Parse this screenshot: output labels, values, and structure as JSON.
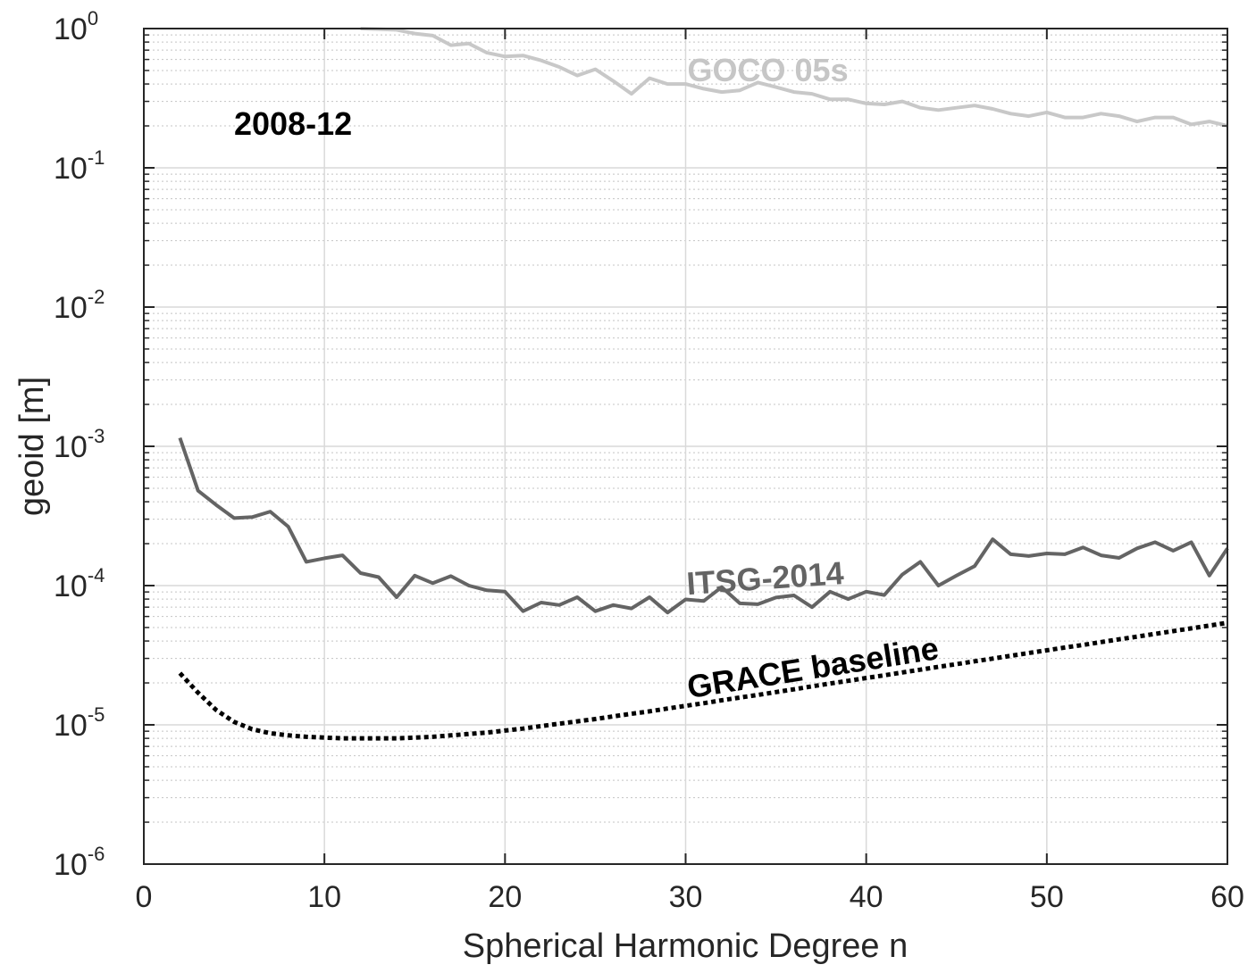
{
  "chart_data": {
    "type": "line",
    "annotation": "2008-12",
    "xlabel": "Spherical Harmonic Degree n",
    "ylabel": "geoid [m]",
    "xlim": [
      0,
      60
    ],
    "ylim": [
      1e-06,
      1
    ],
    "yscale": "log",
    "grid": true,
    "x_ticks": [
      {
        "value": 0,
        "label": "0"
      },
      {
        "value": 10,
        "label": "10"
      },
      {
        "value": 20,
        "label": "20"
      },
      {
        "value": 30,
        "label": "30"
      },
      {
        "value": 40,
        "label": "40"
      },
      {
        "value": 50,
        "label": "50"
      },
      {
        "value": 60,
        "label": "60"
      }
    ],
    "y_ticks": [
      {
        "value": 1e-06,
        "base": "10",
        "exp": "-6"
      },
      {
        "value": 1e-05,
        "base": "10",
        "exp": "-5"
      },
      {
        "value": 0.0001,
        "base": "10",
        "exp": "-4"
      },
      {
        "value": 0.001,
        "base": "10",
        "exp": "-3"
      },
      {
        "value": 0.01,
        "base": "10",
        "exp": "-2"
      },
      {
        "value": 0.1,
        "base": "10",
        "exp": "-1"
      },
      {
        "value": 1,
        "base": "10",
        "exp": "0"
      }
    ],
    "series": [
      {
        "name": "GOCO 05s",
        "color": "#c8c8c8",
        "dash": "solid",
        "label_at": {
          "x": 30.1,
          "y": 0.42
        },
        "label_rotate": 0,
        "x": [
          12,
          14,
          15,
          16,
          17,
          18,
          19,
          20,
          21,
          22,
          23,
          24,
          25,
          26,
          27,
          28,
          29,
          30,
          31,
          32,
          33,
          34,
          35,
          36,
          37,
          38,
          39,
          40,
          41,
          42,
          43,
          44,
          45,
          46,
          47,
          48,
          49,
          50,
          51,
          52,
          53,
          54,
          55,
          56,
          57,
          58,
          59,
          60
        ],
        "y": [
          1.0,
          0.98,
          0.92,
          0.89,
          0.76,
          0.78,
          0.67,
          0.63,
          0.64,
          0.59,
          0.53,
          0.46,
          0.51,
          0.42,
          0.34,
          0.44,
          0.4,
          0.4,
          0.37,
          0.35,
          0.36,
          0.41,
          0.38,
          0.35,
          0.34,
          0.31,
          0.31,
          0.29,
          0.285,
          0.3,
          0.27,
          0.26,
          0.27,
          0.28,
          0.265,
          0.245,
          0.235,
          0.25,
          0.23,
          0.23,
          0.245,
          0.235,
          0.215,
          0.23,
          0.23,
          0.205,
          0.215,
          0.2
        ]
      },
      {
        "name": "ITSG-2014",
        "color": "#646464",
        "dash": "solid",
        "label_at": {
          "x": 30.1,
          "y": 8.6e-05
        },
        "label_rotate": -4,
        "x": [
          2,
          3,
          4,
          5,
          6,
          7,
          8,
          9,
          10,
          11,
          12,
          13,
          14,
          15,
          16,
          17,
          18,
          19,
          20,
          21,
          22,
          23,
          24,
          25,
          26,
          27,
          28,
          29,
          30,
          31,
          32,
          33,
          34,
          35,
          36,
          37,
          38,
          39,
          40,
          41,
          42,
          43,
          44,
          45,
          46,
          47,
          48,
          49,
          50,
          51,
          52,
          53,
          54,
          55,
          56,
          57,
          58,
          59,
          60
        ],
        "y": [
          0.00115,
          0.00048,
          0.00038,
          0.000305,
          0.00031,
          0.00034,
          0.000265,
          0.000148,
          0.000157,
          0.000165,
          0.000123,
          0.000115,
          8.25e-05,
          0.000118,
          0.000104,
          0.000117,
          0.0001,
          9.25e-05,
          9.05e-05,
          6.55e-05,
          7.55e-05,
          7.25e-05,
          8.25e-05,
          6.55e-05,
          7.25e-05,
          6.85e-05,
          8.25e-05,
          6.4e-05,
          7.95e-05,
          7.75e-05,
          9.75e-05,
          7.45e-05,
          7.35e-05,
          8.2e-05,
          8.5e-05,
          7e-05,
          9.05e-05,
          8e-05,
          9.05e-05,
          8.55e-05,
          0.00012,
          0.000148,
          0.0001,
          0.000118,
          0.000138,
          0.000215,
          0.000168,
          0.000163,
          0.00017,
          0.000168,
          0.000188,
          0.000165,
          0.000158,
          0.000185,
          0.000205,
          0.000178,
          0.000205,
          0.000118,
          0.000185
        ]
      },
      {
        "name": "GRACE baseline",
        "color": "#000000",
        "dash": "dotted",
        "label_at": {
          "x": 30.2,
          "y": 1.55e-05
        },
        "label_rotate": -9,
        "x": [
          2,
          3,
          4,
          5,
          6,
          7,
          8,
          9,
          10,
          11,
          12,
          13,
          14,
          15,
          16,
          17,
          18,
          19,
          20,
          21,
          22,
          23,
          24,
          25,
          26,
          27,
          28,
          29,
          30,
          31,
          32,
          33,
          34,
          35,
          36,
          37,
          38,
          39,
          40,
          41,
          42,
          43,
          44,
          45,
          46,
          47,
          48,
          49,
          50,
          51,
          52,
          53,
          54,
          55,
          56,
          57,
          58,
          59,
          60
        ],
        "y": [
          2.35e-05,
          1.7e-05,
          1.28e-05,
          1.05e-05,
          9.3e-06,
          8.7e-06,
          8.4e-06,
          8.2e-06,
          8.1e-06,
          8e-06,
          8e-06,
          8e-06,
          8e-06,
          8.1e-06,
          8.2e-06,
          8.4e-06,
          8.6e-06,
          8.8e-06,
          9.1e-06,
          9.4e-06,
          9.8e-06,
          1.02e-05,
          1.06e-05,
          1.1e-05,
          1.15e-05,
          1.2e-05,
          1.25e-05,
          1.31e-05,
          1.37e-05,
          1.43e-05,
          1.5e-05,
          1.57e-05,
          1.64e-05,
          1.72e-05,
          1.8e-05,
          1.89e-05,
          1.98e-05,
          2.07e-05,
          2.17e-05,
          2.27e-05,
          2.38e-05,
          2.49e-05,
          2.61e-05,
          2.73e-05,
          2.86e-05,
          2.99e-05,
          3.13e-05,
          3.28e-05,
          3.43e-05,
          3.59e-05,
          3.75e-05,
          3.93e-05,
          4.11e-05,
          4.3e-05,
          4.5e-05,
          4.71e-05,
          4.93e-05,
          5.16e-05,
          5.4e-05
        ]
      }
    ]
  }
}
